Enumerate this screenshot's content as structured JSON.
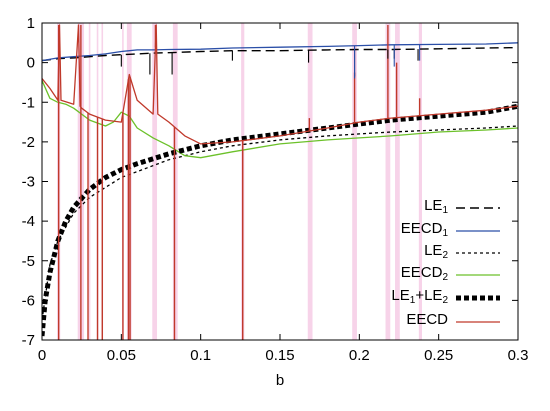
{
  "chart_data": {
    "type": "line",
    "title": "",
    "xlabel": "b",
    "ylabel": "",
    "xlim": [
      0,
      0.3
    ],
    "ylim": [
      -7,
      1
    ],
    "xticks": [
      "0",
      "0.05",
      "0.1",
      "0.15",
      "0.2",
      "0.25",
      "0.3"
    ],
    "yticks": [
      "1",
      "0",
      "-1",
      "-2",
      "-3",
      "-4",
      "-5",
      "-6",
      "-7"
    ],
    "xtick_values": [
      0,
      0.05,
      0.1,
      0.15,
      0.2,
      0.25,
      0.3
    ],
    "ytick_values": [
      1,
      0,
      -1,
      -2,
      -3,
      -4,
      -5,
      -6,
      -7
    ],
    "grid": false,
    "legend_position": "right",
    "shaded_bands": {
      "color": "#f7d3e9",
      "x_ranges": [
        [
          0.0095,
          0.0115
        ],
        [
          0.0225,
          0.0265
        ],
        [
          0.0295,
          0.0305
        ],
        [
          0.0345,
          0.0355
        ],
        [
          0.0375,
          0.0385
        ],
        [
          0.0505,
          0.0515
        ],
        [
          0.0535,
          0.0565
        ],
        [
          0.0695,
          0.0725
        ],
        [
          0.0825,
          0.0855
        ],
        [
          0.1255,
          0.1275
        ],
        [
          0.1675,
          0.1705
        ],
        [
          0.1955,
          0.1985
        ],
        [
          0.2165,
          0.2195
        ],
        [
          0.2225,
          0.2255
        ],
        [
          0.2375,
          0.2395
        ]
      ]
    },
    "series": [
      {
        "name_base": "LE",
        "name_sub": "1",
        "color": "#000000",
        "style": "long-dash",
        "x": [
          0,
          0.01,
          0.02,
          0.03,
          0.04,
          0.05,
          0.06,
          0.07,
          0.08,
          0.1,
          0.12,
          0.15,
          0.18,
          0.2,
          0.22,
          0.25,
          0.28,
          0.3
        ],
        "y": [
          0.05,
          0.1,
          0.12,
          0.15,
          0.18,
          0.2,
          0.22,
          0.24,
          0.25,
          0.28,
          0.3,
          0.3,
          0.32,
          0.33,
          0.33,
          0.35,
          0.37,
          0.38
        ]
      },
      {
        "name_base": "EECD",
        "name_sub": "1",
        "color": "#2b4fa8",
        "style": "solid",
        "x": [
          0,
          0.01,
          0.02,
          0.03,
          0.04,
          0.05,
          0.06,
          0.07,
          0.08,
          0.1,
          0.12,
          0.15,
          0.18,
          0.2,
          0.22,
          0.25,
          0.28,
          0.3
        ],
        "y": [
          0.05,
          0.12,
          0.15,
          0.18,
          0.22,
          0.28,
          0.32,
          0.32,
          0.33,
          0.34,
          0.37,
          0.39,
          0.41,
          0.43,
          0.45,
          0.46,
          0.47,
          0.5
        ]
      },
      {
        "name_base": "LE",
        "name_sub": "2",
        "color": "#000000",
        "style": "short-dash",
        "x": [
          0,
          0.005,
          0.01,
          0.02,
          0.03,
          0.04,
          0.05,
          0.06,
          0.08,
          0.1,
          0.12,
          0.15,
          0.18,
          0.2,
          0.22,
          0.25,
          0.28,
          0.3
        ],
        "y": [
          -6.5,
          -5.1,
          -4.5,
          -3.8,
          -3.4,
          -3.15,
          -2.9,
          -2.75,
          -2.45,
          -2.25,
          -2.1,
          -1.95,
          -1.85,
          -1.8,
          -1.75,
          -1.7,
          -1.65,
          -1.6
        ]
      },
      {
        "name_base": "EECD",
        "name_sub": "2",
        "color": "#6cc12a",
        "style": "solid",
        "x": [
          0,
          0.005,
          0.01,
          0.015,
          0.02,
          0.03,
          0.04,
          0.045,
          0.05,
          0.055,
          0.06,
          0.07,
          0.08,
          0.09,
          0.1,
          0.12,
          0.15,
          0.18,
          0.2,
          0.22,
          0.25,
          0.28,
          0.3
        ],
        "y": [
          -0.45,
          -0.9,
          -1.0,
          -1.05,
          -1.15,
          -1.45,
          -1.6,
          -1.5,
          -1.25,
          -1.35,
          -1.65,
          -1.9,
          -2.1,
          -2.35,
          -2.4,
          -2.25,
          -2.05,
          -1.95,
          -1.9,
          -1.85,
          -1.75,
          -1.7,
          -1.65
        ]
      },
      {
        "name_base": "LE",
        "name_sub": "1",
        "name_mid": "+LE",
        "name_sub2": "2",
        "color": "#000000",
        "style": "thick-dot",
        "x": [
          0,
          0.002,
          0.005,
          0.01,
          0.015,
          0.02,
          0.03,
          0.04,
          0.05,
          0.06,
          0.08,
          0.1,
          0.12,
          0.15,
          0.18,
          0.2,
          0.22,
          0.25,
          0.28,
          0.3
        ],
        "y": [
          -6.9,
          -6.0,
          -5.3,
          -4.5,
          -4.0,
          -3.65,
          -3.2,
          -2.9,
          -2.7,
          -2.55,
          -2.3,
          -2.1,
          -1.95,
          -1.8,
          -1.65,
          -1.55,
          -1.45,
          -1.35,
          -1.25,
          -1.1
        ]
      },
      {
        "name_base": "EECD",
        "name_sub": "",
        "color": "#c0392b",
        "style": "solid",
        "x": [
          0,
          0.005,
          0.01,
          0.011,
          0.012,
          0.02,
          0.023,
          0.024,
          0.025,
          0.03,
          0.04,
          0.05,
          0.055,
          0.06,
          0.07,
          0.072,
          0.073,
          0.08,
          0.09,
          0.1,
          0.12,
          0.15,
          0.18,
          0.2,
          0.22,
          0.25,
          0.28,
          0.3
        ],
        "y": [
          -0.4,
          -0.65,
          -0.95,
          0.95,
          -0.95,
          -1.05,
          0.95,
          -1.1,
          -1.15,
          -1.3,
          -1.45,
          -1.5,
          -0.3,
          -0.95,
          -1.3,
          0.95,
          -1.3,
          -1.5,
          -1.85,
          -2.05,
          -2.0,
          -1.85,
          -1.65,
          -1.5,
          -1.4,
          -1.3,
          -1.2,
          -1.1
        ]
      }
    ],
    "spikes": {
      "note": "",
      "eecd_down": [
        0.0105,
        0.0245,
        0.029,
        0.035,
        0.038,
        0.051,
        0.0545,
        0.0555,
        0.0835,
        0.1265
      ],
      "eecd_up": [
        0.0105,
        0.0245,
        0.0715,
        0.1685,
        0.197,
        0.218,
        0.2235,
        0.238
      ],
      "eecd_up_values": [
        0.95,
        0.95,
        0.95,
        -1.4,
        -0.25,
        0.95,
        0.0,
        -0.9
      ],
      "le1_dips": [
        0.05,
        0.068,
        0.082,
        0.12,
        0.168,
        0.197,
        0.218,
        0.222,
        0.237
      ],
      "le1_dip_values": [
        -0.1,
        -0.3,
        -0.3,
        0.05,
        0.0,
        -0.35,
        0.1,
        0.1,
        0.05
      ],
      "eecd1_dips": [
        0.197,
        0.222,
        0.238
      ],
      "eecd1_dip_values": [
        -0.4,
        -0.1,
        0.05
      ]
    }
  }
}
